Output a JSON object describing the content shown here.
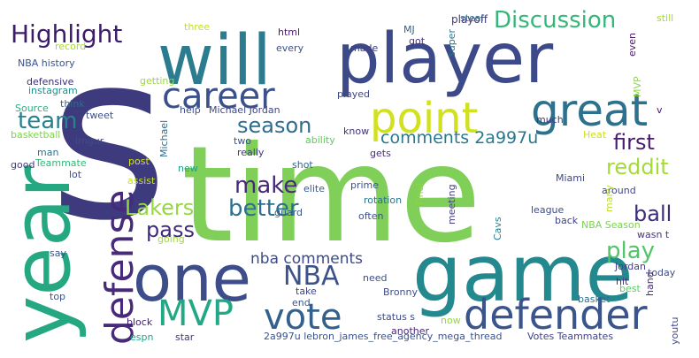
{
  "word_cloud": {
    "words": [
      {
        "text": "s",
        "color": "#3e3a7e"
      },
      {
        "text": "time",
        "color": "#7fcf59"
      },
      {
        "text": "will",
        "color": "#2a7c8e"
      },
      {
        "text": "player",
        "color": "#3d4a89"
      },
      {
        "text": "year",
        "color": "#25a882"
      },
      {
        "text": "game",
        "color": "#23898e"
      },
      {
        "text": "one",
        "color": "#3c4d8a"
      },
      {
        "text": "point",
        "color": "#d1e11d"
      },
      {
        "text": "great",
        "color": "#2c728e"
      },
      {
        "text": "career",
        "color": "#3b518b"
      },
      {
        "text": "defender",
        "color": "#3a548c"
      },
      {
        "text": "defense",
        "color": "#472a7a"
      },
      {
        "text": "MVP",
        "color": "#22a884"
      },
      {
        "text": "vote",
        "color": "#34608d"
      },
      {
        "text": "Highlight",
        "color": "#3b1c6d"
      },
      {
        "text": "Discussion",
        "color": "#35b779"
      },
      {
        "text": "NBA",
        "color": "#3b528b"
      },
      {
        "text": "team",
        "color": "#27818e"
      },
      {
        "text": "season",
        "color": "#2f6c8e"
      },
      {
        "text": "comments 2a997u",
        "color": "#29788e"
      },
      {
        "text": "first",
        "color": "#481d6f"
      },
      {
        "text": "reddit",
        "color": "#a5db36"
      },
      {
        "text": "make",
        "color": "#482878"
      },
      {
        "text": "better",
        "color": "#2d6f8e"
      },
      {
        "text": "Lakers",
        "color": "#95d840"
      },
      {
        "text": "pass",
        "color": "#3f2b7a"
      },
      {
        "text": "ball",
        "color": "#3a2d7a"
      },
      {
        "text": "play",
        "color": "#52c569"
      },
      {
        "text": "nba comments",
        "color": "#3e4a89"
      },
      {
        "text": "playoff",
        "color": "#44397f"
      },
      {
        "text": "steal",
        "color": "#2e6e8e"
      },
      {
        "text": "still",
        "color": "#a2da37"
      },
      {
        "text": "three",
        "color": "#c6e021"
      },
      {
        "text": "html",
        "color": "#4a1b6e"
      },
      {
        "text": "MJ",
        "color": "#31638d"
      },
      {
        "text": "record",
        "color": "#a8db34"
      },
      {
        "text": "every",
        "color": "#3c4f8a"
      },
      {
        "text": "made",
        "color": "#3e3f84"
      },
      {
        "text": "got",
        "color": "#462f7c"
      },
      {
        "text": "super",
        "color": "#2c738e"
      },
      {
        "text": "even",
        "color": "#481769"
      },
      {
        "text": "NBA history",
        "color": "#3b528b"
      },
      {
        "text": "defensive",
        "color": "#3a2b78"
      },
      {
        "text": "instagram",
        "color": "#21918c"
      },
      {
        "text": "getting",
        "color": "#9bd93c"
      },
      {
        "text": "played",
        "color": "#404588"
      },
      {
        "text": "MVP",
        "color": "#8fd744"
      },
      {
        "text": "Source",
        "color": "#2ab07f"
      },
      {
        "text": "think",
        "color": "#2f6b8e"
      },
      {
        "text": "tweet",
        "color": "#3b518b"
      },
      {
        "text": "help",
        "color": "#3d4e8a"
      },
      {
        "text": "Michael Jordan",
        "color": "#3f4788"
      },
      {
        "text": "much",
        "color": "#45347f"
      },
      {
        "text": "v",
        "color": "#481b6d"
      },
      {
        "text": "basketball",
        "color": "#7fd34e"
      },
      {
        "text": "Michael",
        "color": "#2e6d8e"
      },
      {
        "text": "two",
        "color": "#3a538b"
      },
      {
        "text": "ability",
        "color": "#63cb5f"
      },
      {
        "text": "know",
        "color": "#46317e"
      },
      {
        "text": "Heat",
        "color": "#ccdd1f"
      },
      {
        "text": "man",
        "color": "#2c728e"
      },
      {
        "text": "imgur",
        "color": "#3e4c8a"
      },
      {
        "text": "Teammate",
        "color": "#35b779"
      },
      {
        "text": "post",
        "color": "#d2e21b"
      },
      {
        "text": "really",
        "color": "#44397f"
      },
      {
        "text": "shot",
        "color": "#32658e"
      },
      {
        "text": "gets",
        "color": "#472d7b"
      },
      {
        "text": "good",
        "color": "#433d84"
      },
      {
        "text": "new",
        "color": "#20a486"
      },
      {
        "text": "assist",
        "color": "#c7e020"
      },
      {
        "text": "lot",
        "color": "#3c4f8a"
      },
      {
        "text": "elite",
        "color": "#38598c"
      },
      {
        "text": "prime",
        "color": "#3a548c"
      },
      {
        "text": "rotation",
        "color": "#2a768e"
      },
      {
        "text": "Final",
        "color": "#8ed645"
      },
      {
        "text": "meeting",
        "color": "#433e85"
      },
      {
        "text": "Miami",
        "color": "#3e4989"
      },
      {
        "text": "around",
        "color": "#3f4788"
      },
      {
        "text": "many",
        "color": "#bbdf27"
      },
      {
        "text": "guard",
        "color": "#38588c"
      },
      {
        "text": "often",
        "color": "#3b528b"
      },
      {
        "text": "Cavs",
        "color": "#27808e"
      },
      {
        "text": "league",
        "color": "#3d4d8a"
      },
      {
        "text": "back",
        "color": "#404387"
      },
      {
        "text": "going",
        "color": "#a0da39"
      },
      {
        "text": "NBA Season",
        "color": "#7cd250"
      },
      {
        "text": "wasn t",
        "color": "#463480"
      },
      {
        "text": "say",
        "color": "#3b528b"
      },
      {
        "text": "Jordan",
        "color": "#433e85"
      },
      {
        "text": "today",
        "color": "#3d4e8a"
      },
      {
        "text": "need",
        "color": "#3c4f8a"
      },
      {
        "text": "hit",
        "color": "#46307e"
      },
      {
        "text": "hand",
        "color": "#472d7b"
      },
      {
        "text": "top",
        "color": "#3a548c"
      },
      {
        "text": "take",
        "color": "#404387"
      },
      {
        "text": "Bronny",
        "color": "#3d4d8a"
      },
      {
        "text": "best",
        "color": "#5ec962"
      },
      {
        "text": "end",
        "color": "#3b528b"
      },
      {
        "text": "basket",
        "color": "#2d708e"
      },
      {
        "text": "status s",
        "color": "#3e4a89"
      },
      {
        "text": "block",
        "color": "#3b1f6e"
      },
      {
        "text": "another",
        "color": "#482576"
      },
      {
        "text": "now",
        "color": "#94d741"
      },
      {
        "text": "youtu",
        "color": "#3f4788"
      },
      {
        "text": "espn",
        "color": "#20a486"
      },
      {
        "text": "star",
        "color": "#3e3a7e"
      },
      {
        "text": "2a997u lebron_james_free_agency_mega_thread",
        "color": "#3b528b"
      },
      {
        "text": "Votes Teammates",
        "color": "#404387"
      }
    ]
  }
}
